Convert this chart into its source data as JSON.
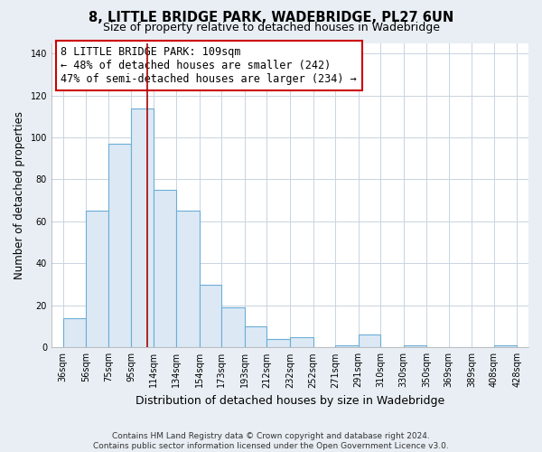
{
  "title": "8, LITTLE BRIDGE PARK, WADEBRIDGE, PL27 6UN",
  "subtitle": "Size of property relative to detached houses in Wadebridge",
  "xlabel": "Distribution of detached houses by size in Wadebridge",
  "ylabel": "Number of detached properties",
  "bar_left_edges": [
    36,
    56,
    75,
    95,
    114,
    134,
    154,
    173,
    193,
    212,
    232,
    252,
    271,
    291,
    310,
    330,
    350,
    369,
    389,
    408
  ],
  "bar_right_edges": [
    56,
    75,
    95,
    114,
    134,
    154,
    173,
    193,
    212,
    232,
    252,
    271,
    291,
    310,
    330,
    350,
    369,
    389,
    408,
    428
  ],
  "bar_heights": [
    14,
    65,
    97,
    114,
    75,
    65,
    30,
    19,
    10,
    4,
    5,
    0,
    1,
    6,
    0,
    1,
    0,
    0,
    0,
    1
  ],
  "bar_fill_color": "#dce9f5",
  "bar_edge_color": "#6baed6",
  "reference_line_x": 109,
  "reference_line_color": "#aa0000",
  "annotation_box_text": "8 LITTLE BRIDGE PARK: 109sqm\n← 48% of detached houses are smaller (242)\n47% of semi-detached houses are larger (234) →",
  "xlim": [
    26,
    438
  ],
  "ylim": [
    0,
    145
  ],
  "yticks": [
    0,
    20,
    40,
    60,
    80,
    100,
    120,
    140
  ],
  "xtick_labels": [
    "36sqm",
    "56sqm",
    "75sqm",
    "95sqm",
    "114sqm",
    "134sqm",
    "154sqm",
    "173sqm",
    "193sqm",
    "212sqm",
    "232sqm",
    "252sqm",
    "271sqm",
    "291sqm",
    "310sqm",
    "330sqm",
    "350sqm",
    "369sqm",
    "389sqm",
    "408sqm",
    "428sqm"
  ],
  "xtick_positions": [
    36,
    56,
    75,
    95,
    114,
    134,
    154,
    173,
    193,
    212,
    232,
    252,
    271,
    291,
    310,
    330,
    350,
    369,
    389,
    408,
    428
  ],
  "background_color": "#e8eef4",
  "plot_bg_color": "#ffffff",
  "grid_color": "#c8d4e0",
  "footnote": "Contains HM Land Registry data © Crown copyright and database right 2024.\nContains public sector information licensed under the Open Government Licence v3.0.",
  "title_fontsize": 10.5,
  "subtitle_fontsize": 9,
  "xlabel_fontsize": 9,
  "ylabel_fontsize": 8.5,
  "annotation_fontsize": 8.5,
  "footnote_fontsize": 6.5,
  "tick_fontsize": 7
}
